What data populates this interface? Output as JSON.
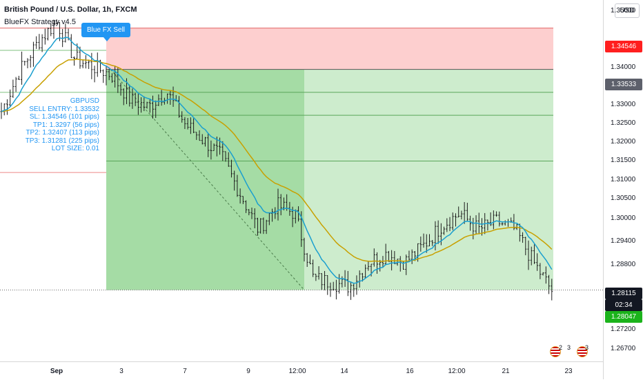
{
  "header": {
    "title": "British Pound / U.S. Dollar, 1h, FXCM",
    "indicator": "BlueFX Strategy v4.5"
  },
  "signal_label": "Blue FX Sell",
  "info_box": {
    "lines": [
      "GBPUSD",
      "SELL ENTRY: 1.33532",
      "SL: 1.34546 (101 pips)",
      "TP1: 1.3297 (56 pips)",
      "TP2: 1.32407 (113 pips)",
      "TP3: 1.31281 (225 pips)",
      "LOT SIZE: 0.01"
    ]
  },
  "price_axis": {
    "currency_button": "USD",
    "ticks": [
      "1.35000",
      "1.34000",
      "1.33000",
      "1.32500",
      "1.32000",
      "1.31500",
      "1.31000",
      "1.30500",
      "1.30000",
      "1.29400",
      "1.28800",
      "1.27200",
      "1.26700"
    ],
    "tags": {
      "sl": "1.34546",
      "entry": "1.33533",
      "current": "1.28115",
      "countdown": "02:34",
      "green": "1.28047"
    }
  },
  "time_axis": {
    "labels": [
      "Sep",
      "3",
      "7",
      "9",
      "12:00",
      "14",
      "16",
      "12:00",
      "21",
      "23"
    ]
  },
  "footer_badges": [
    "2",
    "3",
    "3"
  ],
  "colors": {
    "sl_zone": "#fdcfcf",
    "tp_zone_dark": "#a5dca5",
    "tp_zone_light": "#cdeccd",
    "ema_fast": "#1a9fcf",
    "ema_slow": "#c8a000",
    "accent": "#2196f3",
    "candle": "#1b1b1b",
    "sl_tag": "#ff1f1f",
    "entry_tag": "#5d606b",
    "current_tag": "#131722",
    "green_tag": "#1bb31b"
  },
  "chart_data": {
    "type": "line",
    "series": [
      {
        "name": "GBPUSD",
        "values": [
          1.325,
          1.335,
          1.342,
          1.347,
          1.338,
          1.336,
          1.334,
          1.328,
          1.326,
          1.33,
          1.322,
          1.318,
          1.314,
          1.305,
          1.296,
          1.302,
          1.3,
          1.284,
          1.283,
          1.282,
          1.288,
          1.29,
          1.288,
          1.292,
          1.297,
          1.3,
          1.296,
          1.298,
          1.296,
          1.288,
          1.281
        ]
      }
    ],
    "ylim": [
      1.267,
      1.352
    ]
  }
}
